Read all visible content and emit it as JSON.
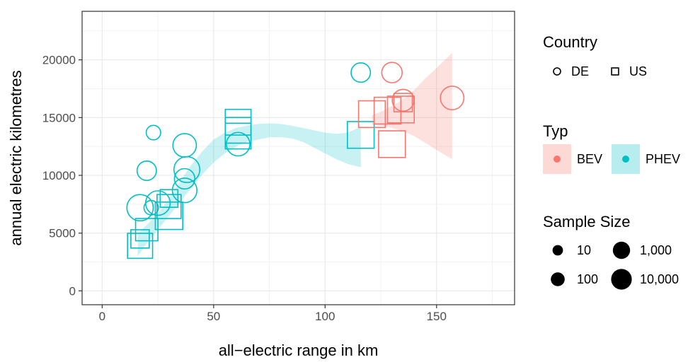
{
  "chart_data": {
    "type": "scatter",
    "xlabel": "all−electric range in km",
    "ylabel": "annual electric kilometres",
    "xlim": [
      -9,
      185
    ],
    "ylim": [
      -1200,
      24200
    ],
    "x_ticks": [
      0,
      50,
      100,
      150
    ],
    "x_tick_labels": [
      "0",
      "50",
      "100",
      "150"
    ],
    "y_ticks": [
      0,
      5000,
      10000,
      15000,
      20000
    ],
    "y_tick_labels": [
      "0",
      "5000",
      "10000",
      "15000",
      "20000"
    ],
    "grid": true,
    "theme": "bw",
    "colors": {
      "BEV": "#F8766D",
      "PHEV": "#00BFC4"
    },
    "points": [
      {
        "x": 17,
        "y": 3900,
        "country": "US",
        "typ": "PHEV",
        "size": 3000
      },
      {
        "x": 17,
        "y": 4500,
        "country": "US",
        "typ": "PHEV",
        "size": 200
      },
      {
        "x": 20,
        "y": 5300,
        "country": "US",
        "typ": "PHEV",
        "size": 1000
      },
      {
        "x": 30,
        "y": 6500,
        "country": "US",
        "typ": "PHEV",
        "size": 8000
      },
      {
        "x": 30,
        "y": 7300,
        "country": "US",
        "typ": "PHEV",
        "size": 2000
      },
      {
        "x": 30,
        "y": 8000,
        "country": "US",
        "typ": "PHEV",
        "size": 150
      },
      {
        "x": 61,
        "y": 13400,
        "country": "US",
        "typ": "PHEV",
        "size": 4000
      },
      {
        "x": 61,
        "y": 13900,
        "country": "US",
        "typ": "PHEV",
        "size": 4000
      },
      {
        "x": 61,
        "y": 14600,
        "country": "US",
        "typ": "PHEV",
        "size": 4000
      },
      {
        "x": 116,
        "y": 13500,
        "country": "US",
        "typ": "PHEV",
        "size": 6000
      },
      {
        "x": 121,
        "y": 15300,
        "country": "US",
        "typ": "BEV",
        "size": 6000
      },
      {
        "x": 128,
        "y": 15600,
        "country": "US",
        "typ": "BEV",
        "size": 6000
      },
      {
        "x": 130,
        "y": 12700,
        "country": "US",
        "typ": "BEV",
        "size": 6000
      },
      {
        "x": 134,
        "y": 15700,
        "country": "US",
        "typ": "BEV",
        "size": 6000
      },
      {
        "x": 135,
        "y": 16300,
        "country": "US",
        "typ": "BEV",
        "size": 200
      },
      {
        "x": 17,
        "y": 7200,
        "country": "DE",
        "typ": "PHEV",
        "size": 3000
      },
      {
        "x": 20,
        "y": 10400,
        "country": "DE",
        "typ": "PHEV",
        "size": 200
      },
      {
        "x": 22,
        "y": 7200,
        "country": "DE",
        "typ": "PHEV",
        "size": 30
      },
      {
        "x": 23,
        "y": 13700,
        "country": "DE",
        "typ": "PHEV",
        "size": 30
      },
      {
        "x": 25,
        "y": 7600,
        "country": "DE",
        "typ": "PHEV",
        "size": 1500
      },
      {
        "x": 37,
        "y": 12600,
        "country": "DE",
        "typ": "PHEV",
        "size": 1000
      },
      {
        "x": 37,
        "y": 9700,
        "country": "DE",
        "typ": "PHEV",
        "size": 300
      },
      {
        "x": 37,
        "y": 8700,
        "country": "DE",
        "typ": "PHEV",
        "size": 1500
      },
      {
        "x": 38,
        "y": 10500,
        "country": "DE",
        "typ": "PHEV",
        "size": 2500
      },
      {
        "x": 61,
        "y": 12700,
        "country": "DE",
        "typ": "PHEV",
        "size": 1000
      },
      {
        "x": 116,
        "y": 18900,
        "country": "DE",
        "typ": "PHEV",
        "size": 200
      },
      {
        "x": 130,
        "y": 18900,
        "country": "DE",
        "typ": "BEV",
        "size": 300
      },
      {
        "x": 135,
        "y": 16500,
        "country": "DE",
        "typ": "BEV",
        "size": 500
      },
      {
        "x": 157,
        "y": 16700,
        "country": "DE",
        "typ": "BEV",
        "size": 1000
      }
    ],
    "smooth_bands": [
      {
        "typ": "PHEV",
        "x": [
          16,
          20,
          25,
          30,
          35,
          40,
          45,
          50,
          55,
          60,
          65,
          70,
          75,
          80,
          85,
          90,
          95,
          100,
          105,
          110,
          116
        ],
        "lower": [
          3000,
          4100,
          5300,
          6500,
          7700,
          8900,
          10100,
          11100,
          11900,
          12500,
          12900,
          13100,
          13300,
          13300,
          13200,
          12900,
          12400,
          11900,
          11400,
          11000,
          10700
        ],
        "upper": [
          5000,
          5700,
          6700,
          8000,
          9500,
          10900,
          12100,
          13100,
          13700,
          14100,
          14300,
          14450,
          14500,
          14450,
          14300,
          14100,
          13900,
          13700,
          13600,
          13700,
          14200
        ]
      },
      {
        "typ": "BEV",
        "x": [
          121,
          125,
          130,
          135,
          140,
          145,
          150,
          157
        ],
        "lower": [
          14400,
          14300,
          14100,
          13800,
          13400,
          12800,
          12200,
          11400
        ],
        "upper": [
          15200,
          15500,
          16000,
          16600,
          17400,
          18400,
          19300,
          20600
        ]
      }
    ],
    "legend": {
      "country": {
        "title": "Country",
        "items": [
          {
            "label": "DE",
            "shape": "circle"
          },
          {
            "label": "US",
            "shape": "square"
          }
        ]
      },
      "typ": {
        "title": "Typ",
        "items": [
          {
            "label": "BEV",
            "color": "#F8766D"
          },
          {
            "label": "PHEV",
            "color": "#00BFC4"
          }
        ]
      },
      "sample_size": {
        "title": "Sample Size",
        "items": [
          {
            "label": "10",
            "value": 10
          },
          {
            "label": "1,000",
            "value": 1000
          },
          {
            "label": "100",
            "value": 100
          },
          {
            "label": "10,000",
            "value": 10000
          }
        ]
      }
    }
  }
}
